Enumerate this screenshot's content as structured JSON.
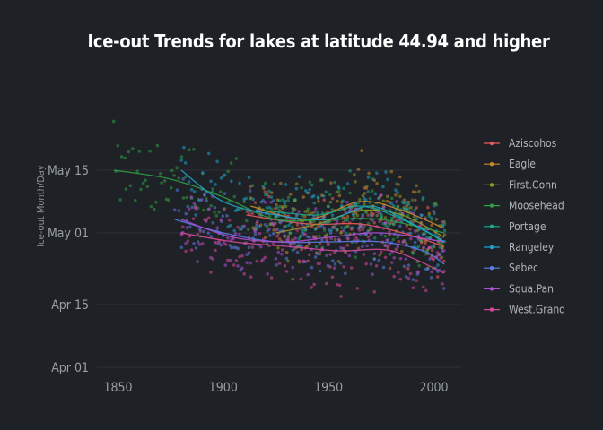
{
  "chart_data": {
    "type": "scatter",
    "title": "Ice-out Trends for lakes at latitude 44.94 and higher",
    "xlabel": "",
    "ylabel": "Ice-out Month/Day",
    "x_ticks": [
      1850,
      1900,
      1950,
      2000
    ],
    "y_ticks": [
      {
        "label": "Apr 01",
        "doy": 91
      },
      {
        "label": "Apr 15",
        "doy": 105
      },
      {
        "label": "May 01",
        "doy": 121
      },
      {
        "label": "May 15",
        "doy": 135
      }
    ],
    "xlim": [
      1840,
      2013
    ],
    "ylim_doy": [
      89,
      150
    ],
    "grid": true,
    "legend_position": "right",
    "series": [
      {
        "name": "Aziscohos",
        "color": "#e8595c",
        "start": 1911,
        "trend": [
          [
            1911,
            125
          ],
          [
            1940,
            123
          ],
          [
            1965,
            123
          ],
          [
            1985,
            121
          ],
          [
            2005,
            118
          ]
        ]
      },
      {
        "name": "Eagle",
        "color": "#c9892c",
        "start": 1913,
        "trend": [
          [
            1913,
            127
          ],
          [
            1940,
            124
          ],
          [
            1965,
            128
          ],
          [
            1985,
            126
          ],
          [
            2005,
            122
          ]
        ]
      },
      {
        "name": "First.Conn",
        "color": "#8f9b26",
        "start": 1925,
        "trend": [
          [
            1925,
            121
          ],
          [
            1945,
            123
          ],
          [
            1965,
            126
          ],
          [
            1985,
            125
          ],
          [
            2005,
            120
          ]
        ]
      },
      {
        "name": "Moosehead",
        "color": "#2f9e44",
        "start": 1848,
        "trend": [
          [
            1848,
            135
          ],
          [
            1875,
            133
          ],
          [
            1900,
            129
          ],
          [
            1925,
            124
          ],
          [
            1950,
            124
          ],
          [
            1975,
            124
          ],
          [
            2005,
            121
          ]
        ]
      },
      {
        "name": "Portage",
        "color": "#19a98a",
        "start": 1920,
        "trend": [
          [
            1920,
            126
          ],
          [
            1945,
            125
          ],
          [
            1965,
            127
          ],
          [
            1985,
            124
          ],
          [
            2005,
            119
          ]
        ]
      },
      {
        "name": "Rangeley",
        "color": "#1fa3c9",
        "start": 1880,
        "trend": [
          [
            1880,
            135
          ],
          [
            1900,
            128
          ],
          [
            1925,
            125
          ],
          [
            1950,
            124
          ],
          [
            1970,
            127
          ],
          [
            1990,
            123
          ],
          [
            2005,
            119
          ]
        ]
      },
      {
        "name": "Sebec",
        "color": "#5b7de6",
        "start": 1877,
        "trend": [
          [
            1877,
            124
          ],
          [
            1900,
            121
          ],
          [
            1925,
            119
          ],
          [
            1950,
            119
          ],
          [
            1975,
            119
          ],
          [
            1995,
            117
          ],
          [
            2005,
            114
          ]
        ]
      },
      {
        "name": "Squa.Pan",
        "color": "#b04fd9",
        "start": 1880,
        "trend": [
          [
            1880,
            124
          ],
          [
            1905,
            120
          ],
          [
            1930,
            119
          ],
          [
            1950,
            120
          ],
          [
            1975,
            121
          ],
          [
            2005,
            119
          ]
        ]
      },
      {
        "name": "West.Grand",
        "color": "#d5499c",
        "start": 1880,
        "trend": [
          [
            1880,
            121
          ],
          [
            1905,
            119
          ],
          [
            1930,
            118
          ],
          [
            1955,
            117
          ],
          [
            1980,
            117
          ],
          [
            2005,
            112
          ]
        ]
      }
    ]
  }
}
